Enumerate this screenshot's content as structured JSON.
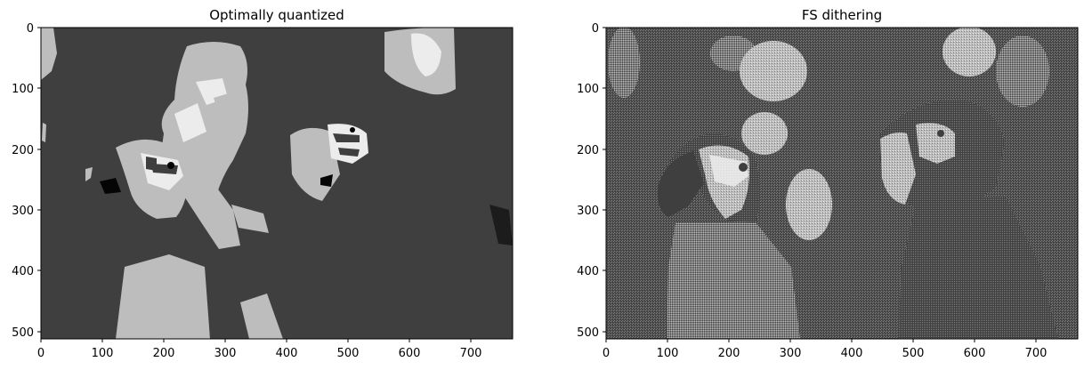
{
  "figure": {
    "panels": [
      {
        "title": "Optimally quantized",
        "x_ticks": [
          "0",
          "100",
          "200",
          "300",
          "400",
          "500",
          "600",
          "700"
        ],
        "y_ticks": [
          "0",
          "100",
          "200",
          "300",
          "400",
          "500"
        ],
        "palette": [
          "#3f3f3f",
          "#bdbdbd",
          "#ececec",
          "#050505"
        ],
        "rendering": "posterized 4-level grayscale"
      },
      {
        "title": "FS dithering",
        "x_ticks": [
          "0",
          "100",
          "200",
          "300",
          "400",
          "500",
          "600",
          "700"
        ],
        "y_ticks": [
          "0",
          "100",
          "200",
          "300",
          "400",
          "500"
        ],
        "palette": [
          "#3f3f3f",
          "#7f7f7f",
          "#bdbdbd",
          "#ececec"
        ],
        "rendering": "Floyd–Steinberg dithered grayscale"
      }
    ],
    "image_extent": {
      "width": 768,
      "height": 512
    }
  }
}
